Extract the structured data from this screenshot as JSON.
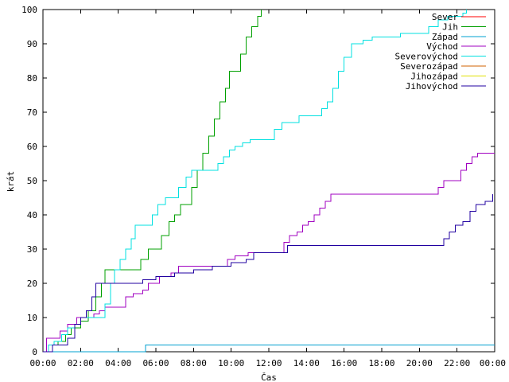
{
  "chart_data": {
    "type": "line",
    "xlabel": "Čas",
    "ylabel": "krát",
    "xlim": [
      0,
      24
    ],
    "ylim": [
      0,
      100
    ],
    "x_tick_labels": [
      "00:00",
      "02:00",
      "04:00",
      "06:00",
      "08:00",
      "10:00",
      "12:00",
      "14:00",
      "16:00",
      "18:00",
      "20:00",
      "22:00",
      "00:00"
    ],
    "y_ticks": [
      0,
      10,
      20,
      30,
      40,
      50,
      60,
      70,
      80,
      90,
      100
    ],
    "grid": false,
    "legend_position": "top-right",
    "series": [
      {
        "name": "Sever",
        "color": "#ff0000",
        "points": []
      },
      {
        "name": "Jih",
        "color": "#00a000",
        "points": [
          [
            0,
            0
          ],
          [
            0.3,
            2
          ],
          [
            0.8,
            3
          ],
          [
            1.2,
            5
          ],
          [
            1.5,
            7
          ],
          [
            2.0,
            9
          ],
          [
            2.4,
            12
          ],
          [
            2.8,
            16
          ],
          [
            3.1,
            20
          ],
          [
            3.3,
            24
          ],
          [
            4.0,
            24
          ],
          [
            5.0,
            24
          ],
          [
            5.2,
            27
          ],
          [
            5.6,
            30
          ],
          [
            6.0,
            30
          ],
          [
            6.3,
            34
          ],
          [
            6.7,
            38
          ],
          [
            7.0,
            40
          ],
          [
            7.3,
            43
          ],
          [
            7.6,
            43
          ],
          [
            7.9,
            48
          ],
          [
            8.2,
            53
          ],
          [
            8.5,
            58
          ],
          [
            8.8,
            63
          ],
          [
            9.1,
            68
          ],
          [
            9.4,
            73
          ],
          [
            9.7,
            77
          ],
          [
            9.9,
            82
          ],
          [
            10.2,
            82
          ],
          [
            10.5,
            87
          ],
          [
            10.8,
            92
          ],
          [
            11.1,
            95
          ],
          [
            11.4,
            98
          ],
          [
            11.6,
            100
          ]
        ]
      },
      {
        "name": "Západ",
        "color": "#00a0d0",
        "points": [
          [
            0,
            0
          ],
          [
            5.4,
            0
          ],
          [
            5.45,
            2
          ],
          [
            24,
            2
          ]
        ]
      },
      {
        "name": "Východ",
        "color": "#a000c0",
        "points": [
          [
            0,
            0
          ],
          [
            0.2,
            4
          ],
          [
            0.7,
            4
          ],
          [
            0.9,
            6
          ],
          [
            1.3,
            8
          ],
          [
            1.8,
            10
          ],
          [
            2.0,
            10
          ],
          [
            2.7,
            11
          ],
          [
            3.0,
            12
          ],
          [
            3.3,
            13
          ],
          [
            3.8,
            13
          ],
          [
            4.2,
            13
          ],
          [
            4.4,
            16
          ],
          [
            4.8,
            17
          ],
          [
            5.3,
            18
          ],
          [
            5.6,
            20
          ],
          [
            6.2,
            22
          ],
          [
            6.8,
            23
          ],
          [
            7.2,
            25
          ],
          [
            8.0,
            25
          ],
          [
            8.5,
            25
          ],
          [
            9.5,
            25
          ],
          [
            9.8,
            27
          ],
          [
            10.2,
            28
          ],
          [
            10.6,
            28
          ],
          [
            10.9,
            29
          ],
          [
            11.5,
            29
          ],
          [
            12.5,
            29
          ],
          [
            12.8,
            32
          ],
          [
            13.1,
            34
          ],
          [
            13.5,
            35
          ],
          [
            13.8,
            37
          ],
          [
            14.1,
            38
          ],
          [
            14.4,
            40
          ],
          [
            14.7,
            42
          ],
          [
            15.0,
            44
          ],
          [
            15.3,
            46
          ],
          [
            16.0,
            46
          ],
          [
            20.0,
            46
          ],
          [
            20.8,
            46
          ],
          [
            21.0,
            48
          ],
          [
            21.3,
            50
          ],
          [
            21.8,
            50
          ],
          [
            22.2,
            53
          ],
          [
            22.5,
            55
          ],
          [
            22.8,
            57
          ],
          [
            23.1,
            58
          ],
          [
            24,
            58
          ]
        ]
      },
      {
        "name": "Severovýchod",
        "color": "#00e0e0",
        "points": [
          [
            0,
            0
          ],
          [
            0.3,
            2
          ],
          [
            0.6,
            3
          ],
          [
            1.0,
            5
          ],
          [
            1.3,
            7
          ],
          [
            1.7,
            8
          ],
          [
            2.0,
            10
          ],
          [
            3.0,
            10
          ],
          [
            3.3,
            14
          ],
          [
            3.6,
            20
          ],
          [
            3.8,
            24
          ],
          [
            4.1,
            27
          ],
          [
            4.4,
            30
          ],
          [
            4.7,
            33
          ],
          [
            4.9,
            37
          ],
          [
            5.4,
            37
          ],
          [
            5.8,
            40
          ],
          [
            6.1,
            43
          ],
          [
            6.5,
            45
          ],
          [
            6.9,
            45
          ],
          [
            7.2,
            48
          ],
          [
            7.6,
            51
          ],
          [
            7.9,
            53
          ],
          [
            8.5,
            53
          ],
          [
            9.0,
            53
          ],
          [
            9.3,
            55
          ],
          [
            9.6,
            57
          ],
          [
            9.9,
            59
          ],
          [
            10.2,
            60
          ],
          [
            10.6,
            61
          ],
          [
            11.0,
            62
          ],
          [
            11.5,
            62
          ],
          [
            12.0,
            62
          ],
          [
            12.3,
            65
          ],
          [
            12.7,
            67
          ],
          [
            13.2,
            67
          ],
          [
            13.6,
            69
          ],
          [
            14.5,
            69
          ],
          [
            14.8,
            71
          ],
          [
            15.1,
            73
          ],
          [
            15.4,
            77
          ],
          [
            15.7,
            82
          ],
          [
            16.0,
            86
          ],
          [
            16.4,
            90
          ],
          [
            17.0,
            91
          ],
          [
            17.5,
            92
          ],
          [
            18.5,
            92
          ],
          [
            19.0,
            93
          ],
          [
            20.0,
            93
          ],
          [
            20.5,
            95
          ],
          [
            21.0,
            97
          ],
          [
            21.5,
            98
          ],
          [
            22.0,
            98
          ],
          [
            22.3,
            99
          ],
          [
            22.5,
            100
          ]
        ]
      },
      {
        "name": "Severozápad",
        "color": "#d06000",
        "points": []
      },
      {
        "name": "Jihozápad",
        "color": "#e0e000",
        "points": []
      },
      {
        "name": "Jihovýchod",
        "color": "#2000a0",
        "points": [
          [
            0,
            0
          ],
          [
            0.3,
            0
          ],
          [
            0.5,
            2
          ],
          [
            1.0,
            2
          ],
          [
            1.3,
            4
          ],
          [
            1.7,
            8
          ],
          [
            2.0,
            10
          ],
          [
            2.3,
            12
          ],
          [
            2.6,
            16
          ],
          [
            2.8,
            20
          ],
          [
            3.5,
            20
          ],
          [
            5.0,
            20
          ],
          [
            5.3,
            21
          ],
          [
            6.0,
            22
          ],
          [
            7.0,
            23
          ],
          [
            8.0,
            24
          ],
          [
            9.0,
            25
          ],
          [
            10.0,
            26
          ],
          [
            10.8,
            27
          ],
          [
            11.2,
            29
          ],
          [
            12.5,
            29
          ],
          [
            13.0,
            31
          ],
          [
            15.0,
            31
          ],
          [
            18.0,
            31
          ],
          [
            20.0,
            31
          ],
          [
            21.0,
            31
          ],
          [
            21.3,
            33
          ],
          [
            21.6,
            35
          ],
          [
            21.9,
            37
          ],
          [
            22.3,
            38
          ],
          [
            22.7,
            41
          ],
          [
            23.0,
            43
          ],
          [
            23.5,
            44
          ],
          [
            23.9,
            46
          ]
        ]
      }
    ]
  }
}
